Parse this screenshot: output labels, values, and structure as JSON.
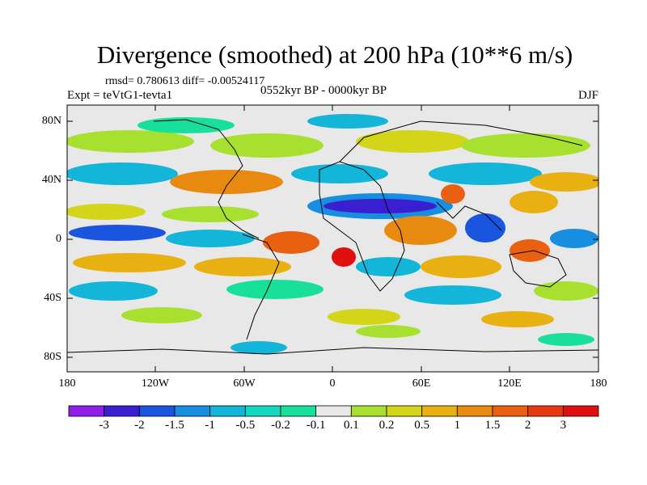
{
  "title": "Divergence (smoothed) at 200 hPa (10**6 m/s)",
  "stats": {
    "rmsd_label": "rmsd= 0.780613 diff= -0.00524117"
  },
  "experiment": "Expt = teVtG1-tevta1",
  "period": "0552kyr BP - 0000kyr BP",
  "season": "DJF",
  "lat_labels": [
    "80N",
    "40N",
    "0",
    "40S",
    "80S"
  ],
  "lon_labels": [
    "180",
    "120W",
    "60W",
    "0",
    "60E",
    "120E",
    "180"
  ],
  "colorbar": {
    "labels": [
      "-3",
      "-2",
      "-1.5",
      "-1",
      "-0.5",
      "-0.2",
      "-0.1",
      "0.1",
      "0.2",
      "0.5",
      "1",
      "1.5",
      "2",
      "3"
    ],
    "colors": [
      "#8f1fe8",
      "#3a1fd0",
      "#1a55e0",
      "#178ee0",
      "#13b6d8",
      "#14d8c0",
      "#18e09a",
      "#e8e8e8",
      "#a8e030",
      "#d4d418",
      "#e8b010",
      "#e88a10",
      "#e86010",
      "#e83810",
      "#e01010"
    ]
  },
  "colors": {
    "neutral": "#e8e8e8",
    "coast": "#000000"
  }
}
